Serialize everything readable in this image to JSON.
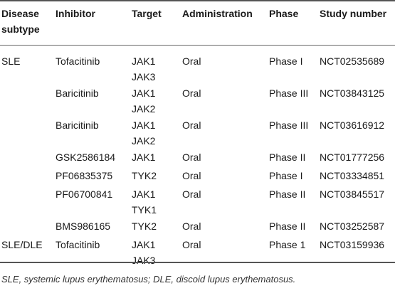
{
  "table": {
    "headers": [
      [
        "Disease",
        "subtype"
      ],
      [
        "Inhibitor"
      ],
      [
        "Target"
      ],
      [
        "Administration"
      ],
      [
        "Phase"
      ],
      [
        "Study number"
      ]
    ],
    "rows": [
      {
        "subtype": "SLE",
        "inhibitor": "Tofacitinib",
        "targets": [
          "JAK1",
          "JAK3"
        ],
        "administration": "Oral",
        "phase": "Phase I",
        "study": "NCT02535689"
      },
      {
        "subtype": "",
        "inhibitor": "Baricitinib",
        "targets": [
          "JAK1",
          "JAK2"
        ],
        "administration": "Oral",
        "phase": "Phase III",
        "study": "NCT03843125"
      },
      {
        "subtype": "",
        "inhibitor": "Baricitinib",
        "targets": [
          "JAK1",
          "JAK2"
        ],
        "administration": "Oral",
        "phase": "Phase III",
        "study": "NCT03616912"
      },
      {
        "subtype": "",
        "inhibitor": "GSK2586184",
        "targets": [
          "JAK1"
        ],
        "administration": "Oral",
        "phase": "Phase II",
        "study": "NCT01777256"
      },
      {
        "subtype": "",
        "inhibitor": "PF06835375",
        "targets": [
          "TYK2"
        ],
        "administration": "Oral",
        "phase": "Phase I",
        "study": "NCT03334851"
      },
      {
        "subtype": "",
        "inhibitor": "PF06700841",
        "targets": [
          "JAK1",
          "TYK1"
        ],
        "administration": "Oral",
        "phase": "Phase II",
        "study": "NCT03845517"
      },
      {
        "subtype": "",
        "inhibitor": "BMS986165",
        "targets": [
          "TYK2"
        ],
        "administration": "Oral",
        "phase": "Phase II",
        "study": "NCT03252587"
      },
      {
        "subtype": "SLE/DLE",
        "inhibitor": "Tofacitinib",
        "targets": [
          "JAK1",
          "JAK3"
        ],
        "administration": "Oral",
        "phase": "Phase 1",
        "study": "NCT03159936"
      }
    ]
  },
  "footnote": "SLE, systemic lupus erythematosus; DLE, discoid lupus erythematosus."
}
